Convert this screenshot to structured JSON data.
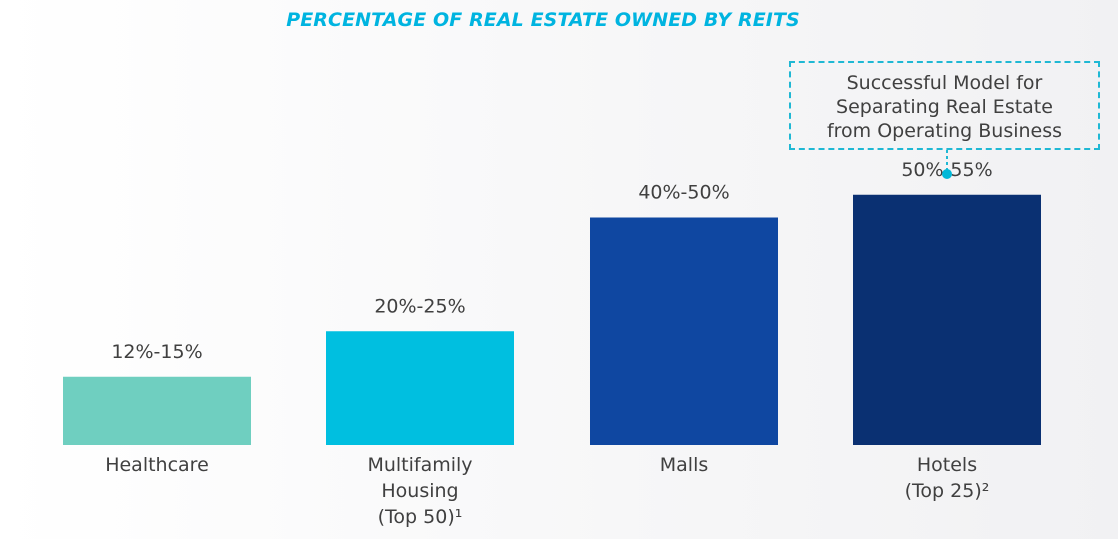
{
  "chart_data": {
    "type": "bar",
    "title": "PERCENTAGE OF REAL ESTATE OWNED BY REITS",
    "categories": [
      [
        "Healthcare"
      ],
      [
        "Multifamily",
        "Housing",
        "(Top 50)¹"
      ],
      [
        "Malls"
      ],
      [
        "Hotels",
        "(Top 25)²"
      ]
    ],
    "series": [
      {
        "ranges": [
          [
            12,
            15
          ],
          [
            20,
            25
          ],
          [
            40,
            50
          ],
          [
            50,
            55
          ]
        ],
        "labels": [
          "12%-15%",
          "20%-25%",
          "40%-50%",
          "50%-55%"
        ]
      }
    ],
    "colors": [
      "#6fcfc0",
      "#00bfe0",
      "#0f47a1",
      "#0a3072"
    ],
    "ylim": [
      0,
      60
    ],
    "grid": false,
    "legend": "none",
    "callout": {
      "target_category": "Hotels",
      "lines": [
        "Successful Model for",
        "Separating Real Estate",
        "from Operating Business"
      ],
      "border_color": "#1fb8d4"
    }
  }
}
